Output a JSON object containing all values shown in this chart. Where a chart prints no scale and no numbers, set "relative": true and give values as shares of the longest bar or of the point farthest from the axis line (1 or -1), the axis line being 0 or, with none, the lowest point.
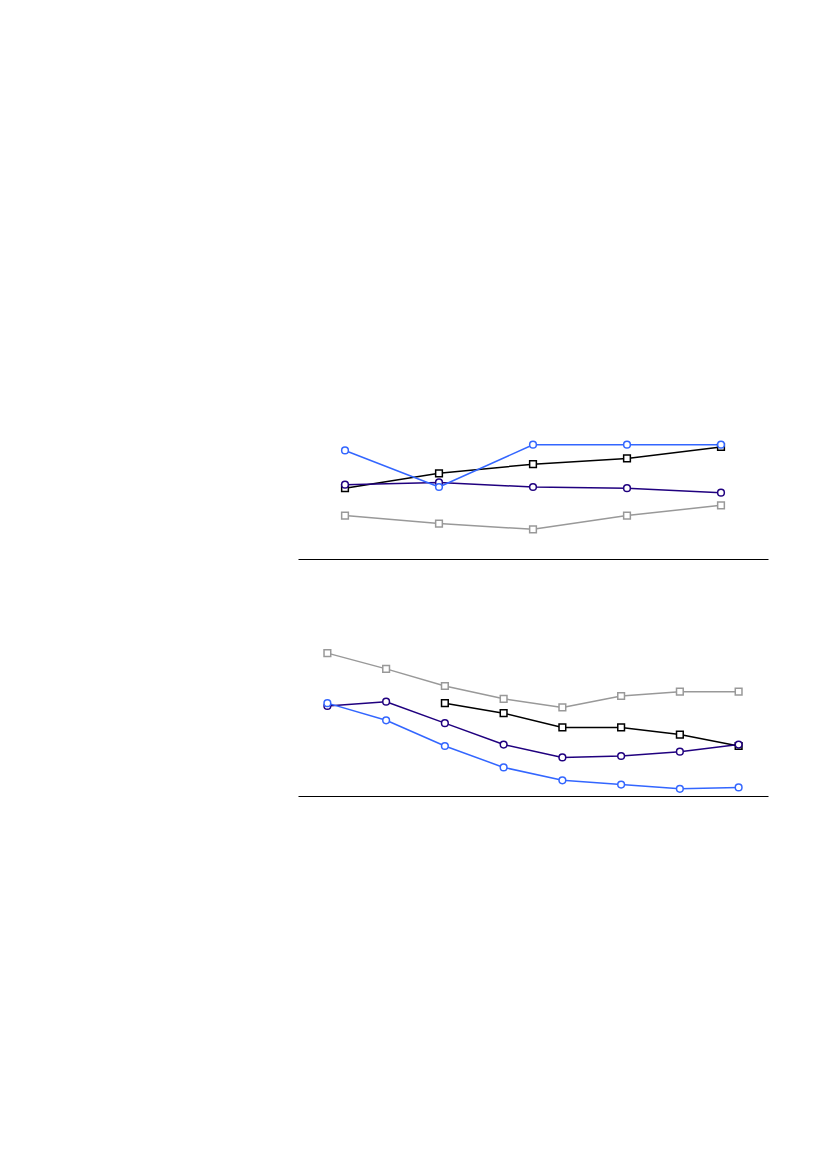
{
  "chart_data": [
    {
      "type": "line",
      "relative": true,
      "grid": false,
      "categories": [
        null,
        null,
        null,
        null,
        null
      ],
      "series": [
        {
          "color": "#000000",
          "marker": "square",
          "values": [
            0.62,
            0.75,
            0.83,
            0.88,
            0.98
          ]
        },
        {
          "color": "#20007f",
          "marker": "circle",
          "values": [
            0.65,
            0.67,
            0.63,
            0.62,
            0.58
          ]
        },
        {
          "color": "#999999",
          "marker": "square",
          "values": [
            0.38,
            0.31,
            0.26,
            0.38,
            0.47
          ]
        },
        {
          "color": "#3366ff",
          "marker": "circle",
          "values": [
            0.95,
            0.63,
            1,
            1,
            1
          ]
        }
      ]
    },
    {
      "type": "line",
      "relative": true,
      "grid": false,
      "categories": [
        null,
        null,
        null,
        null,
        null,
        null,
        null,
        null
      ],
      "series": [
        {
          "color": "#000000",
          "marker": "square",
          "values": [
            null,
            null,
            0.65,
            0.58,
            0.48,
            0.48,
            0.43,
            0.35
          ]
        },
        {
          "color": "#20007f",
          "marker": "circle",
          "values": [
            0.63,
            0.66,
            0.51,
            0.36,
            0.27,
            0.28,
            0.31,
            0.36
          ]
        },
        {
          "color": "#999999",
          "marker": "square",
          "values": [
            1,
            0.89,
            0.77,
            0.68,
            0.62,
            0.7,
            0.73,
            0.73
          ]
        },
        {
          "color": "#3366ff",
          "marker": "circle",
          "values": [
            0.65,
            0.53,
            0.35,
            0.2,
            0.11,
            0.08,
            0.05,
            0.06
          ]
        }
      ]
    }
  ]
}
